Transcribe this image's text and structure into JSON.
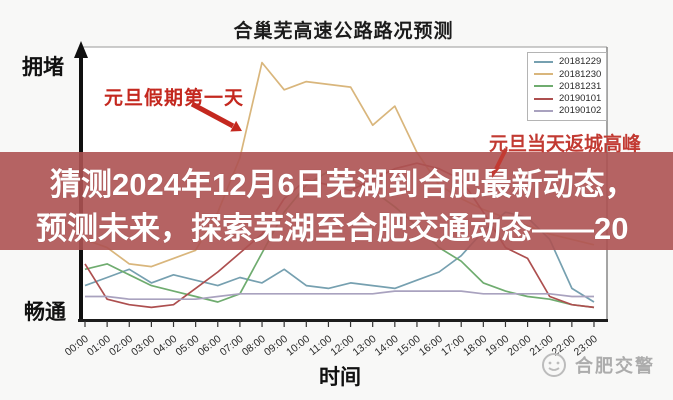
{
  "banner": {
    "line1": "猜测2024年12月6日芜湖到合肥最新动态，",
    "line2": "预测未来，探索芜湖至合肥交通动态——20",
    "bg_color": "#ad5252",
    "text_color": "#ffffff"
  },
  "watermark": {
    "text": "合肥交警"
  },
  "chart_data": {
    "type": "line",
    "title": "合巢芜高速公路路况预测",
    "xlabel": "时间",
    "ylabel_top": "拥堵",
    "ylabel_bottom": "畅通",
    "legend_position": "upper right",
    "grid": false,
    "ylim_note": "qualitative congestion scale 0-100 (畅通=0 bottom, 拥堵=100 top), values estimated from pixels",
    "x_ticks": [
      "00:00",
      "01:00",
      "02:00",
      "03:00",
      "04:00",
      "05:00",
      "06:00",
      "07:00",
      "08:00",
      "09:00",
      "10:00",
      "11:00",
      "12:00",
      "13:00",
      "14:00",
      "15:00",
      "16:00",
      "17:00",
      "18:00",
      "19:00",
      "20:00",
      "21:00",
      "22:00",
      "23:00"
    ],
    "series": [
      {
        "name": "20181229",
        "color": "#76a0b0",
        "values": [
          13,
          16,
          19,
          14,
          17,
          15,
          13,
          16,
          14,
          19,
          13,
          12,
          14,
          13,
          12,
          15,
          18,
          24,
          33,
          40,
          38,
          30,
          12,
          7
        ]
      },
      {
        "name": "20181230",
        "color": "#d9b67c",
        "values": [
          30,
          27,
          21,
          20,
          23,
          26,
          40,
          60,
          95,
          85,
          88,
          87,
          86,
          72,
          79,
          62,
          50,
          45,
          41,
          38,
          35,
          32,
          30,
          28
        ]
      },
      {
        "name": "20181231",
        "color": "#6fac6f",
        "values": [
          19,
          21,
          17,
          13,
          11,
          9,
          7,
          10,
          25,
          40,
          50,
          55,
          52,
          48,
          42,
          35,
          27,
          22,
          14,
          11,
          9,
          8,
          6,
          5
        ]
      },
      {
        "name": "20190101",
        "color": "#ad4f4f",
        "values": [
          21,
          8,
          6,
          5,
          6,
          12,
          18,
          25,
          32,
          45,
          52,
          50,
          48,
          52,
          56,
          58,
          56,
          52,
          40,
          27,
          23,
          9,
          6,
          5
        ]
      },
      {
        "name": "20190102",
        "color": "#a9a2bf",
        "values": [
          9,
          9,
          8,
          8,
          8,
          8,
          9,
          10,
          10,
          10,
          10,
          10,
          10,
          10,
          11,
          11,
          11,
          11,
          10,
          10,
          10,
          10,
          9,
          9
        ]
      }
    ],
    "annotations": [
      {
        "text": "元旦假期第一天",
        "color": "#c4281f",
        "points_to": "orange morning rise around 06:00"
      },
      {
        "text": "元旦当天返城高峰",
        "color": "#c23a32",
        "points_to": "red return-peak hidden behind banner ~16:00-18:00"
      }
    ]
  }
}
